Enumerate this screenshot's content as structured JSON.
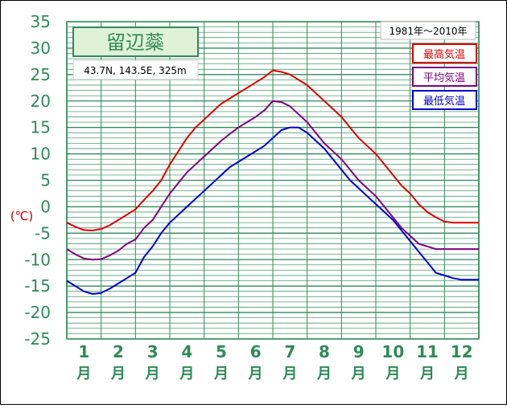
{
  "chart_data": {
    "type": "line",
    "title": "留辺蘂",
    "location": "43.7N, 143.5E, 325m",
    "period": "1981年〜2010年",
    "ylabel": "(℃)",
    "ylim": [
      -25,
      35
    ],
    "ytick_step": 5,
    "grid": true,
    "legend_position": "top-right",
    "categories": [
      "1月",
      "2月",
      "3月",
      "4月",
      "5月",
      "6月",
      "7月",
      "8月",
      "9月",
      "10月",
      "11月",
      "12月"
    ],
    "category_numbers": [
      "1",
      "2",
      "3",
      "4",
      "5",
      "6",
      "7",
      "8",
      "9",
      "10",
      "11",
      "12"
    ],
    "category_unit": "月",
    "colors": {
      "axis_text": "#2e8b57",
      "grid": "#2e8b57",
      "ylabel": "#cc0000",
      "title_bg": "#dff2d8",
      "title_text": "#2e8b57"
    },
    "x": [
      0.0,
      0.25,
      0.5,
      0.75,
      1.0,
      1.25,
      1.5,
      1.75,
      2.0,
      2.25,
      2.5,
      2.75,
      3.0,
      3.25,
      3.5,
      3.75,
      4.0,
      4.25,
      4.5,
      4.75,
      5.0,
      5.25,
      5.5,
      5.75,
      6.0,
      6.25,
      6.5,
      6.75,
      7.0,
      7.25,
      7.5,
      7.75,
      8.0,
      8.25,
      8.5,
      8.75,
      9.0,
      9.25,
      9.5,
      9.75,
      10.0,
      10.25,
      10.5,
      10.75,
      11.0,
      11.25,
      11.5,
      11.75,
      12.0
    ],
    "series": [
      {
        "name": "最高気温",
        "color": "#e00000",
        "values": [
          -3.0,
          -3.8,
          -4.4,
          -4.5,
          -4.2,
          -3.5,
          -2.5,
          -1.5,
          -0.5,
          1.3,
          3.0,
          5.0,
          8.0,
          10.5,
          13.0,
          15.0,
          16.5,
          18.0,
          19.5,
          20.5,
          21.5,
          22.5,
          23.5,
          24.5,
          25.8,
          25.5,
          25.0,
          24.0,
          23.0,
          21.5,
          20.0,
          18.5,
          17.0,
          15.0,
          13.0,
          11.5,
          10.0,
          8.0,
          6.0,
          4.0,
          2.5,
          0.5,
          -1.0,
          -2.0,
          -2.8,
          -3.0,
          -3.0,
          -3.0,
          -3.0
        ]
      },
      {
        "name": "平均気温",
        "color": "#800080",
        "values": [
          -8.0,
          -9.0,
          -9.8,
          -10.0,
          -9.9,
          -9.2,
          -8.3,
          -7.0,
          -6.2,
          -4.0,
          -2.5,
          0.0,
          2.5,
          4.5,
          6.5,
          8.0,
          9.5,
          11.0,
          12.5,
          13.8,
          15.0,
          16.0,
          17.0,
          18.2,
          20.0,
          19.8,
          19.0,
          17.5,
          16.0,
          14.0,
          12.0,
          10.5,
          9.0,
          7.0,
          5.0,
          3.5,
          2.0,
          0.0,
          -2.0,
          -4.0,
          -5.5,
          -7.0,
          -7.5,
          -8.0,
          -8.0,
          -8.0,
          -8.0,
          -8.0,
          -8.0
        ]
      },
      {
        "name": "最低気温",
        "color": "#0000cc",
        "values": [
          -14.0,
          -15.0,
          -16.0,
          -16.5,
          -16.3,
          -15.5,
          -14.5,
          -13.5,
          -12.5,
          -9.5,
          -7.5,
          -5.0,
          -3.0,
          -1.5,
          0.0,
          1.5,
          3.0,
          4.5,
          6.0,
          7.5,
          8.5,
          9.5,
          10.5,
          11.5,
          13.0,
          14.5,
          15.0,
          15.0,
          14.0,
          12.5,
          11.0,
          9.0,
          7.0,
          5.0,
          3.5,
          2.0,
          0.5,
          -1.0,
          -2.5,
          -4.5,
          -6.5,
          -8.5,
          -10.5,
          -12.5,
          -13.0,
          -13.5,
          -13.8,
          -13.8,
          -13.8
        ]
      }
    ]
  }
}
